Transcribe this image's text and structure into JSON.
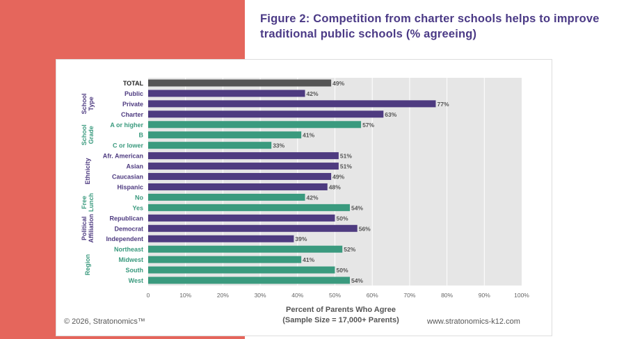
{
  "title": "Figure 2: Competition from charter schools helps to improve traditional public schools (% agreeing)",
  "footer": {
    "copyright": "© 2026, Stratonomics™",
    "website": "www.stratonomics-k12.com"
  },
  "colors": {
    "background": "#e5665c",
    "title": "#4b3a86",
    "purple": "#4e3b80",
    "green": "#3a9a7e",
    "total": "#555555",
    "plot_bg": "#e6e6e6"
  },
  "chart_data": {
    "type": "bar",
    "orientation": "horizontal",
    "xlabel": [
      "Percent of Parents Who Agree",
      "(Sample Size = 17,000+ Parents)"
    ],
    "xlim": [
      0,
      100
    ],
    "xticks": [
      "0",
      "10%",
      "20%",
      "30%",
      "40%",
      "50%",
      "60%",
      "70%",
      "80%",
      "90%",
      "100%"
    ],
    "grid": true,
    "categories": [
      "TOTAL",
      "Public",
      "Private",
      "Charter",
      "A or higher",
      "B",
      "C or lower",
      "Afr. American",
      "Asian",
      "Caucasian",
      "Hispanic",
      "No",
      "Yes",
      "Republican",
      "Democrat",
      "Independent",
      "Northeast",
      "Midwest",
      "South",
      "West"
    ],
    "values": [
      49,
      42,
      77,
      63,
      57,
      41,
      33,
      51,
      51,
      49,
      48,
      42,
      54,
      50,
      56,
      39,
      52,
      41,
      50,
      54
    ],
    "data_labels": [
      "49%",
      "42%",
      "77%",
      "63%",
      "57%",
      "41%",
      "33%",
      "51%",
      "51%",
      "49%",
      "48%",
      "42%",
      "54%",
      "50%",
      "56%",
      "39%",
      "52%",
      "41%",
      "50%",
      "54%"
    ],
    "bar_colors": [
      "total",
      "purple",
      "purple",
      "purple",
      "green",
      "green",
      "green",
      "purple",
      "purple",
      "purple",
      "purple",
      "green",
      "green",
      "purple",
      "purple",
      "purple",
      "green",
      "green",
      "green",
      "green"
    ],
    "groups": [
      {
        "label": [
          "School",
          "Type"
        ],
        "start": 1,
        "end": 3,
        "color": "purple"
      },
      {
        "label": [
          "School",
          "Grade"
        ],
        "start": 4,
        "end": 6,
        "color": "green"
      },
      {
        "label": [
          "Ethnicity"
        ],
        "start": 7,
        "end": 10,
        "color": "purple"
      },
      {
        "label": [
          "Free",
          "Lunch"
        ],
        "start": 11,
        "end": 12,
        "color": "green"
      },
      {
        "label": [
          "Political",
          "Affiliation"
        ],
        "start": 13,
        "end": 15,
        "color": "purple"
      },
      {
        "label": [
          "Region"
        ],
        "start": 16,
        "end": 19,
        "color": "green"
      }
    ]
  }
}
